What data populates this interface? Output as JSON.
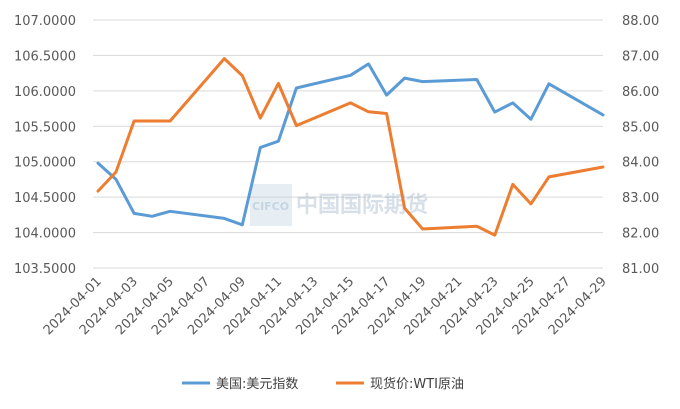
{
  "chart_data": {
    "type": "line",
    "x": [
      "2024-04-01",
      "2024-04-02",
      "2024-04-03",
      "2024-04-04",
      "2024-04-05",
      "2024-04-08",
      "2024-04-09",
      "2024-04-10",
      "2024-04-11",
      "2024-04-12",
      "2024-04-15",
      "2024-04-16",
      "2024-04-17",
      "2024-04-18",
      "2024-04-19",
      "2024-04-22",
      "2024-04-23",
      "2024-04-24",
      "2024-04-25",
      "2024-04-26",
      "2024-04-29"
    ],
    "xticks": [
      "2024-04-01",
      "2024-04-03",
      "2024-04-05",
      "2024-04-07",
      "2024-04-09",
      "2024-04-11",
      "2024-04-13",
      "2024-04-15",
      "2024-04-17",
      "2024-04-19",
      "2024-04-21",
      "2024-04-23",
      "2024-04-25",
      "2024-04-27",
      "2024-04-29"
    ],
    "y_left_ticks": [
      "103.5000",
      "104.0000",
      "104.5000",
      "105.0000",
      "105.5000",
      "106.0000",
      "106.5000",
      "107.0000"
    ],
    "y_right_ticks": [
      "81.00",
      "82.00",
      "83.00",
      "84.00",
      "85.00",
      "86.00",
      "87.00",
      "88.00"
    ],
    "ylim_left": [
      103.5,
      107.0
    ],
    "ylim_right": [
      81.0,
      88.0
    ],
    "series": [
      {
        "name": "美国:美元指数",
        "axis": "left",
        "color": "#5b9bd5",
        "values": [
          104.98,
          104.75,
          104.27,
          104.23,
          104.3,
          104.2,
          104.11,
          105.2,
          105.29,
          106.04,
          106.22,
          106.38,
          105.94,
          106.18,
          106.13,
          106.16,
          105.7,
          105.83,
          105.6,
          106.1,
          105.66
        ]
      },
      {
        "name": "现货价:WTI原油",
        "axis": "right",
        "color": "#ed7d31",
        "values": [
          83.17,
          83.71,
          85.15,
          85.15,
          85.15,
          86.91,
          86.43,
          85.23,
          86.21,
          85.02,
          85.66,
          85.41,
          85.36,
          82.69,
          82.1,
          82.18,
          81.93,
          83.36,
          82.81,
          83.57,
          83.85
        ]
      }
    ],
    "watermark": "中国国际期货",
    "watermark_logo": "CIFCO"
  }
}
